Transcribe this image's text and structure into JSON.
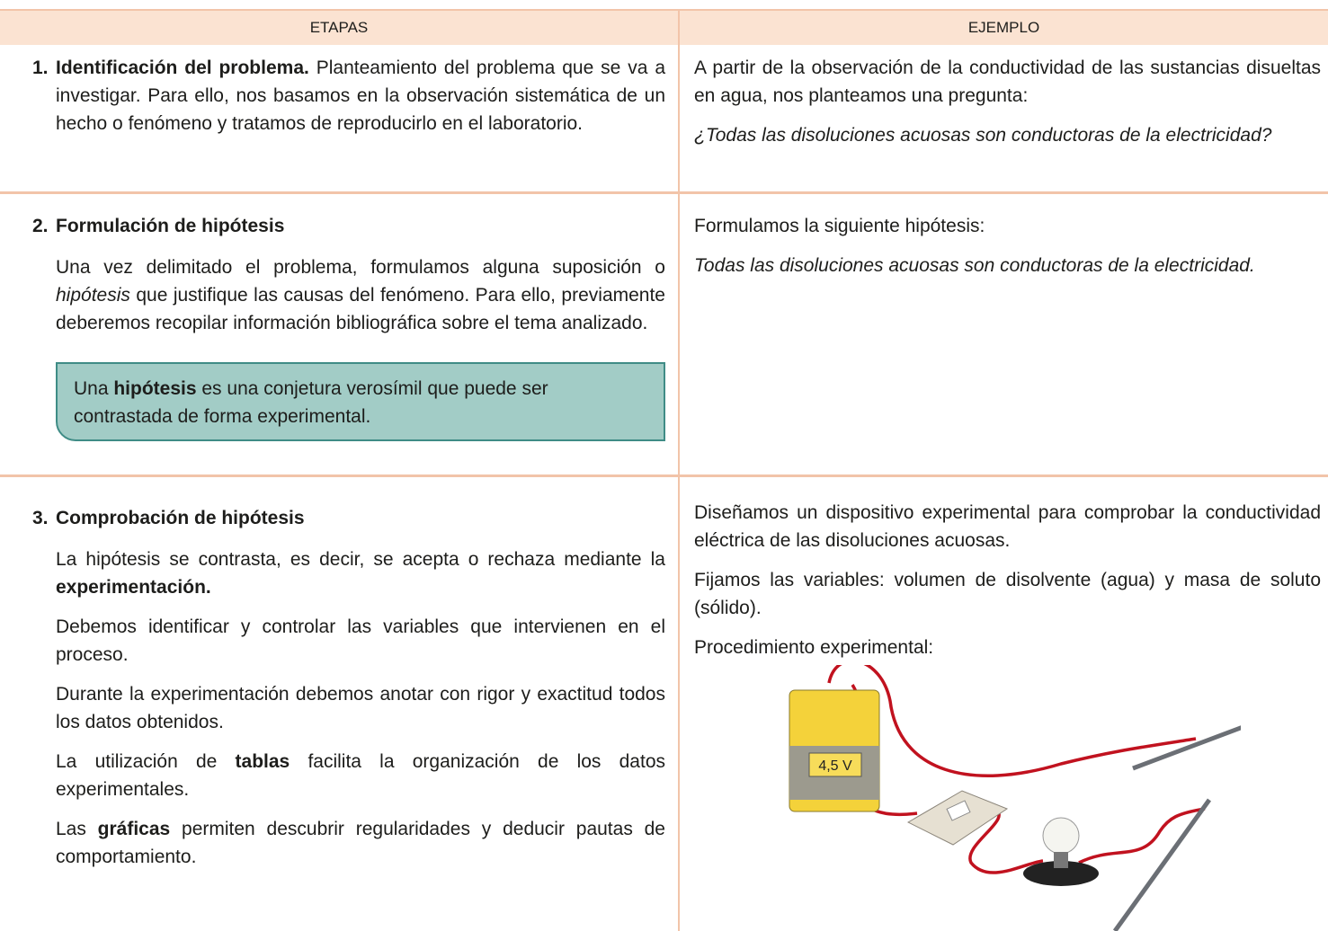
{
  "table": {
    "headers": [
      "ETAPAS",
      "EJEMPLO"
    ],
    "rows": [
      {
        "etapa": {
          "number": "1.",
          "title": "Identificación del problema.",
          "text": " Planteamiento del problema que se va a investigar. Para ello, nos basamos en la observación sistemática de un hecho o fenómeno y tratamos de reproducirlo en el laboratorio."
        },
        "ejemplo": {
          "paragraphs": [
            "A partir de la observación de la conductividad de las sustancias disueltas en agua, nos planteamos una pregunta:"
          ],
          "italic": "¿Todas las disoluciones acuosas son conductoras de la electricidad?"
        }
      },
      {
        "etapa": {
          "number": "2.",
          "title": "Formulación de hipótesis",
          "paragraph": [
            "Una vez delimitado el problema, formulamos alguna suposición o ",
            "hipótesis",
            " que justifique las causas del fenómeno. Para ello, previamente deberemos recopilar información bibliográfica sobre el tema analizado."
          ],
          "box": [
            "Una ",
            "hipótesis",
            " es una conjetura verosímil que puede ser contrastada de forma experimental."
          ]
        },
        "ejemplo": {
          "paragraphs": [
            "Formulamos la siguiente hipótesis:"
          ],
          "italic": "Todas las disoluciones acuosas son conductoras de la electricidad."
        }
      },
      {
        "etapa": {
          "number": "3.",
          "title": "Comprobación de hipótesis",
          "paragraphs": [
            [
              "La hipótesis se contrasta, es decir, se acepta o rechaza mediante la ",
              "experimentación."
            ],
            [
              "Debemos identificar y controlar las variables que intervienen en el proceso."
            ],
            [
              "Durante la experimentación debemos anotar con rigor y exactitud todos los datos obtenidos."
            ],
            [
              "La utilización de ",
              "tablas",
              " facilita la organización de los datos experimentales."
            ],
            [
              "Las ",
              "gráficas",
              " permiten descubrir regularidades y deducir pautas de comportamiento."
            ]
          ]
        },
        "ejemplo": {
          "paragraphs": [
            "Diseñamos un dispositivo experimental para comprobar la conductividad eléctrica de las disoluciones acuosas.",
            "Fijamos las variables: volumen de disolvente (agua) y masa de soluto (sólido).",
            "Procedimiento experimental:"
          ],
          "battery_label": "4,5 V"
        }
      }
    ]
  }
}
